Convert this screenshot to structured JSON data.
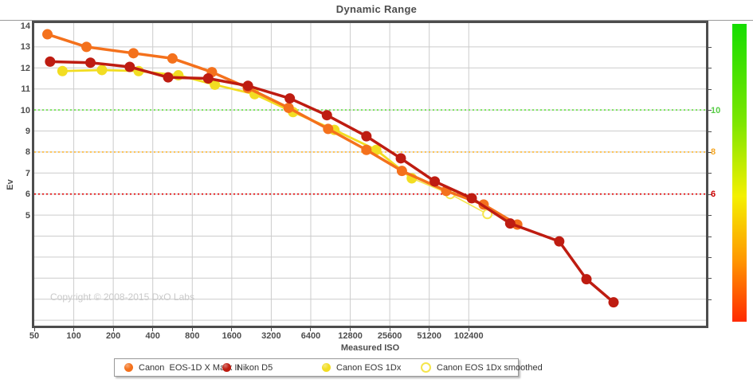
{
  "title": "Dynamic Range",
  "copyright": "Copyright © 2008-2015 DxO Labs",
  "axes": {
    "x_label": "Measured ISO",
    "y_label": "Ev",
    "x_ticks": [
      50,
      100,
      200,
      400,
      800,
      1600,
      3200,
      6400,
      12800,
      25600,
      51200,
      102400
    ],
    "y_ticks_labeled": [
      14,
      13,
      12,
      11,
      10,
      9,
      8,
      7,
      6,
      5
    ]
  },
  "legend": {
    "items": [
      {
        "label": "Canon  EOS-1D X Mark II",
        "color": "#F4711C",
        "marker": "filled-circle"
      },
      {
        "label": "Nikon D5",
        "color": "#BE1C11",
        "marker": "filled-circle"
      },
      {
        "label": "Canon EOS 1Dx",
        "color": "#F2DD22",
        "marker": "filled-circle"
      },
      {
        "label": "Canon EOS 1Dx smoothed",
        "color": "#F5E54C",
        "marker": "open-circle"
      }
    ],
    "item_offsets": [
      12,
      135,
      260,
      384
    ]
  },
  "chart_data": {
    "type": "line",
    "title": "Dynamic Range",
    "xlabel": "Measured ISO",
    "ylabel": "Ev",
    "x_scale": "log2",
    "xlim": [
      50,
      6500000
    ],
    "ylim": [
      -0.3,
      14.15
    ],
    "grid": true,
    "legend_position": "bottom",
    "x_ticks": [
      50,
      100,
      200,
      400,
      800,
      1600,
      3200,
      6400,
      12800,
      25600,
      51200,
      102400
    ],
    "y_gridlines": [
      13,
      12,
      11,
      10,
      9,
      8,
      7,
      6,
      5,
      4,
      3,
      2,
      1,
      0
    ],
    "thresholds": [
      {
        "ev": 10,
        "line_color": "#62e23e",
        "label": "10",
        "label_color": "#55cc44"
      },
      {
        "ev": 8,
        "line_color": "#ffb833",
        "label": "8",
        "label_color": "#f5a623"
      },
      {
        "ev": 6,
        "line_color": "#e00000",
        "label": "6",
        "label_color": "#cc0000"
      }
    ],
    "series": [
      {
        "name": "Canon  EOS-1D X Mark II",
        "color": "#F4711C",
        "marker": "filled-circle",
        "line_width": 3.5,
        "points": [
          [
            63,
            13.6
          ],
          [
            125,
            13.0
          ],
          [
            285,
            12.7
          ],
          [
            565,
            12.45
          ],
          [
            1130,
            11.8
          ],
          [
            2120,
            11.05
          ],
          [
            4340,
            10.1
          ],
          [
            8680,
            9.1
          ],
          [
            17000,
            8.1
          ],
          [
            31700,
            7.1
          ],
          [
            69000,
            6.15
          ],
          [
            133000,
            5.5
          ],
          [
            240000,
            4.55
          ]
        ]
      },
      {
        "name": "Nikon D5",
        "color": "#BE1C11",
        "marker": "filled-circle",
        "line_width": 3.5,
        "points": [
          [
            66,
            12.3
          ],
          [
            134,
            12.25
          ],
          [
            267,
            12.05
          ],
          [
            524,
            11.55
          ],
          [
            1058,
            11.5
          ],
          [
            2126,
            11.15
          ],
          [
            4430,
            10.55
          ],
          [
            8500,
            9.75
          ],
          [
            17000,
            8.75
          ],
          [
            31100,
            7.7
          ],
          [
            56400,
            6.6
          ],
          [
            108000,
            5.8
          ],
          [
            212000,
            4.6
          ],
          [
            501000,
            3.75
          ],
          [
            808000,
            1.95
          ],
          [
            1300000,
            0.85
          ]
        ]
      },
      {
        "name": "Canon EOS 1Dx",
        "color": "#F2DD22",
        "marker": "filled-circle",
        "line_width": 2.8,
        "points": [
          [
            82,
            11.85
          ],
          [
            164,
            11.9
          ],
          [
            312,
            11.85
          ],
          [
            627,
            11.65
          ],
          [
            1190,
            11.2
          ],
          [
            2390,
            10.75
          ],
          [
            4690,
            9.9
          ],
          [
            9700,
            9.05
          ],
          [
            20200,
            8.1
          ],
          [
            37700,
            6.75
          ]
        ]
      },
      {
        "name": "Canon EOS 1Dx smoothed",
        "color": "#F5E54C",
        "marker": "open-circle",
        "line_width": 1.6,
        "points": [
          [
            37700,
            6.75
          ],
          [
            74000,
            6.0
          ],
          [
            142000,
            5.05
          ]
        ]
      }
    ],
    "colorbar": {
      "orientation": "vertical",
      "colors_top_to_bottom": [
        "#15dd00",
        "#7ce600",
        "#f4f000",
        "#ff9900",
        "#ff2a00"
      ]
    }
  }
}
